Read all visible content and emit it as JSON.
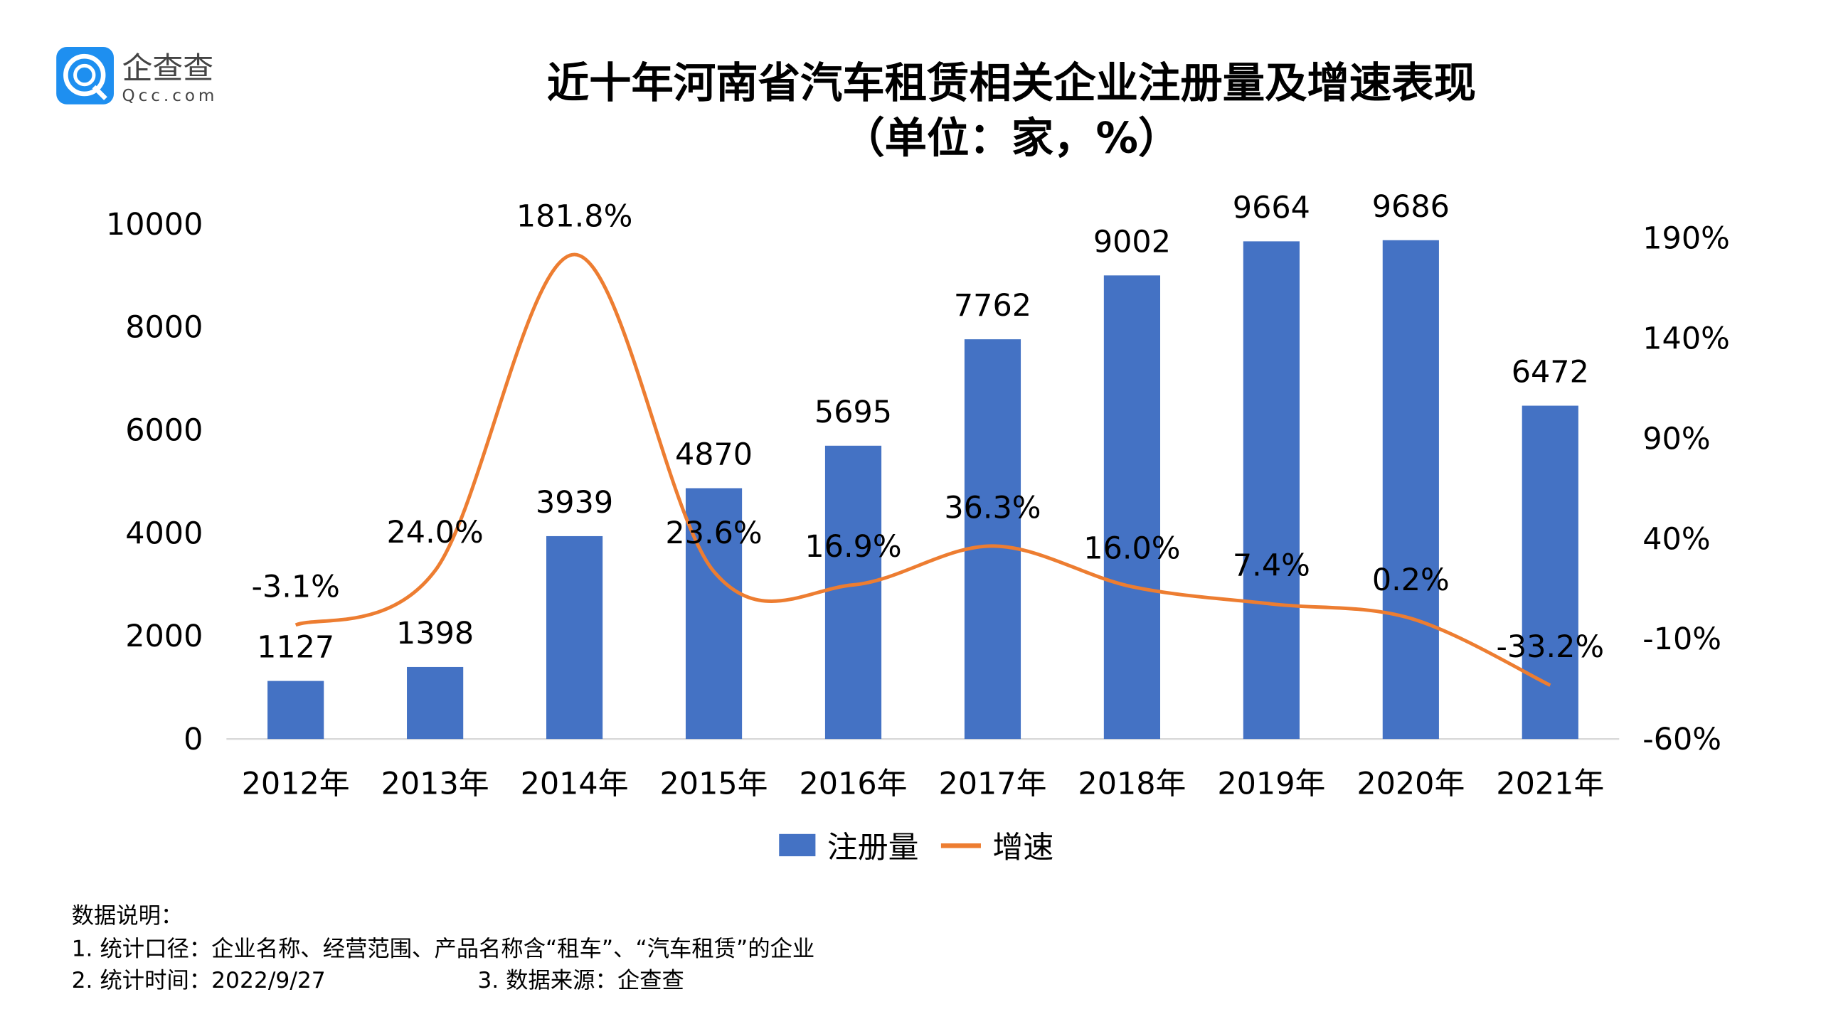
{
  "logo": {
    "name": "企查查",
    "domain": "Qcc.com",
    "color": "#1e8ff0"
  },
  "colors": {
    "bar": "#4472c4",
    "line": "#ed7d31"
  },
  "chart_data": {
    "type": "bar+line",
    "title": "近十年河南省汽车租赁相关企业注册量及增速表现",
    "subtitle": "（单位：家，%）",
    "categories": [
      "2012年",
      "2013年",
      "2014年",
      "2015年",
      "2016年",
      "2017年",
      "2018年",
      "2019年",
      "2020年",
      "2021年"
    ],
    "series": [
      {
        "name": "注册量",
        "type": "bar",
        "axis": "left",
        "values": [
          1127,
          1398,
          3939,
          4870,
          5695,
          7762,
          9002,
          9664,
          9686,
          6472
        ],
        "labels": [
          "1127",
          "1398",
          "3939",
          "4870",
          "5695",
          "7762",
          "9002",
          "9664",
          "9686",
          "6472"
        ]
      },
      {
        "name": "增速",
        "type": "line",
        "axis": "right",
        "values": [
          -3.1,
          24.0,
          181.8,
          23.6,
          16.9,
          36.3,
          16.0,
          7.4,
          0.2,
          -33.2
        ],
        "labels": [
          "-3.1%",
          "24.0%",
          "181.8%",
          "23.6%",
          "16.9%",
          "36.3%",
          "16.0%",
          "7.4%",
          "0.2%",
          "-33.2%"
        ]
      }
    ],
    "ylim": [
      0,
      10000
    ],
    "yticks": [
      "0",
      "2000",
      "4000",
      "6000",
      "8000",
      "10000"
    ],
    "y2lim": [
      -60,
      190
    ],
    "y2ticks": [
      "-60%",
      "-10%",
      "40%",
      "90%",
      "140%",
      "190%"
    ],
    "grid": false,
    "legend": "bottom"
  },
  "notes": {
    "heading": "数据说明：",
    "line1": "1. 统计口径：企业名称、经营范围、产品名称含“租车”、“汽车租赁”的企业",
    "line2": "2. 统计时间：2022/9/27",
    "line3": "3. 数据来源：企查查"
  }
}
